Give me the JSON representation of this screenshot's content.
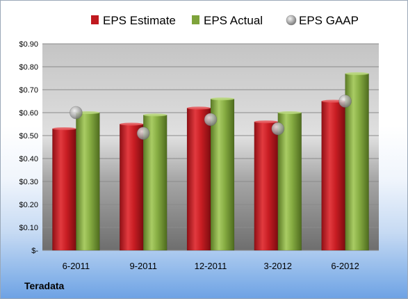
{
  "company": "Teradata",
  "chart_data": {
    "type": "bar",
    "categories": [
      "6-2011",
      "9-2011",
      "12-2011",
      "3-2012",
      "6-2012"
    ],
    "series": [
      {
        "name": "EPS Estimate",
        "type": "bar",
        "values": [
          0.53,
          0.55,
          0.62,
          0.56,
          0.65
        ],
        "color": "#c0191f"
      },
      {
        "name": "EPS Actual",
        "type": "bar",
        "values": [
          0.6,
          0.59,
          0.66,
          0.6,
          0.77
        ],
        "color": "#7ea33b"
      },
      {
        "name": "EPS GAAP",
        "type": "scatter",
        "values": [
          0.6,
          0.51,
          0.57,
          0.53,
          0.65
        ],
        "color": "#a8a8a8"
      }
    ],
    "yticks": [
      "$-",
      "$0.10",
      "$0.20",
      "$0.30",
      "$0.40",
      "$0.50",
      "$0.60",
      "$0.70",
      "$0.80",
      "$0.90"
    ],
    "ylim": [
      0,
      0.9
    ],
    "grid": true,
    "legend": "top",
    "title": "",
    "xlabel": "",
    "ylabel": ""
  }
}
